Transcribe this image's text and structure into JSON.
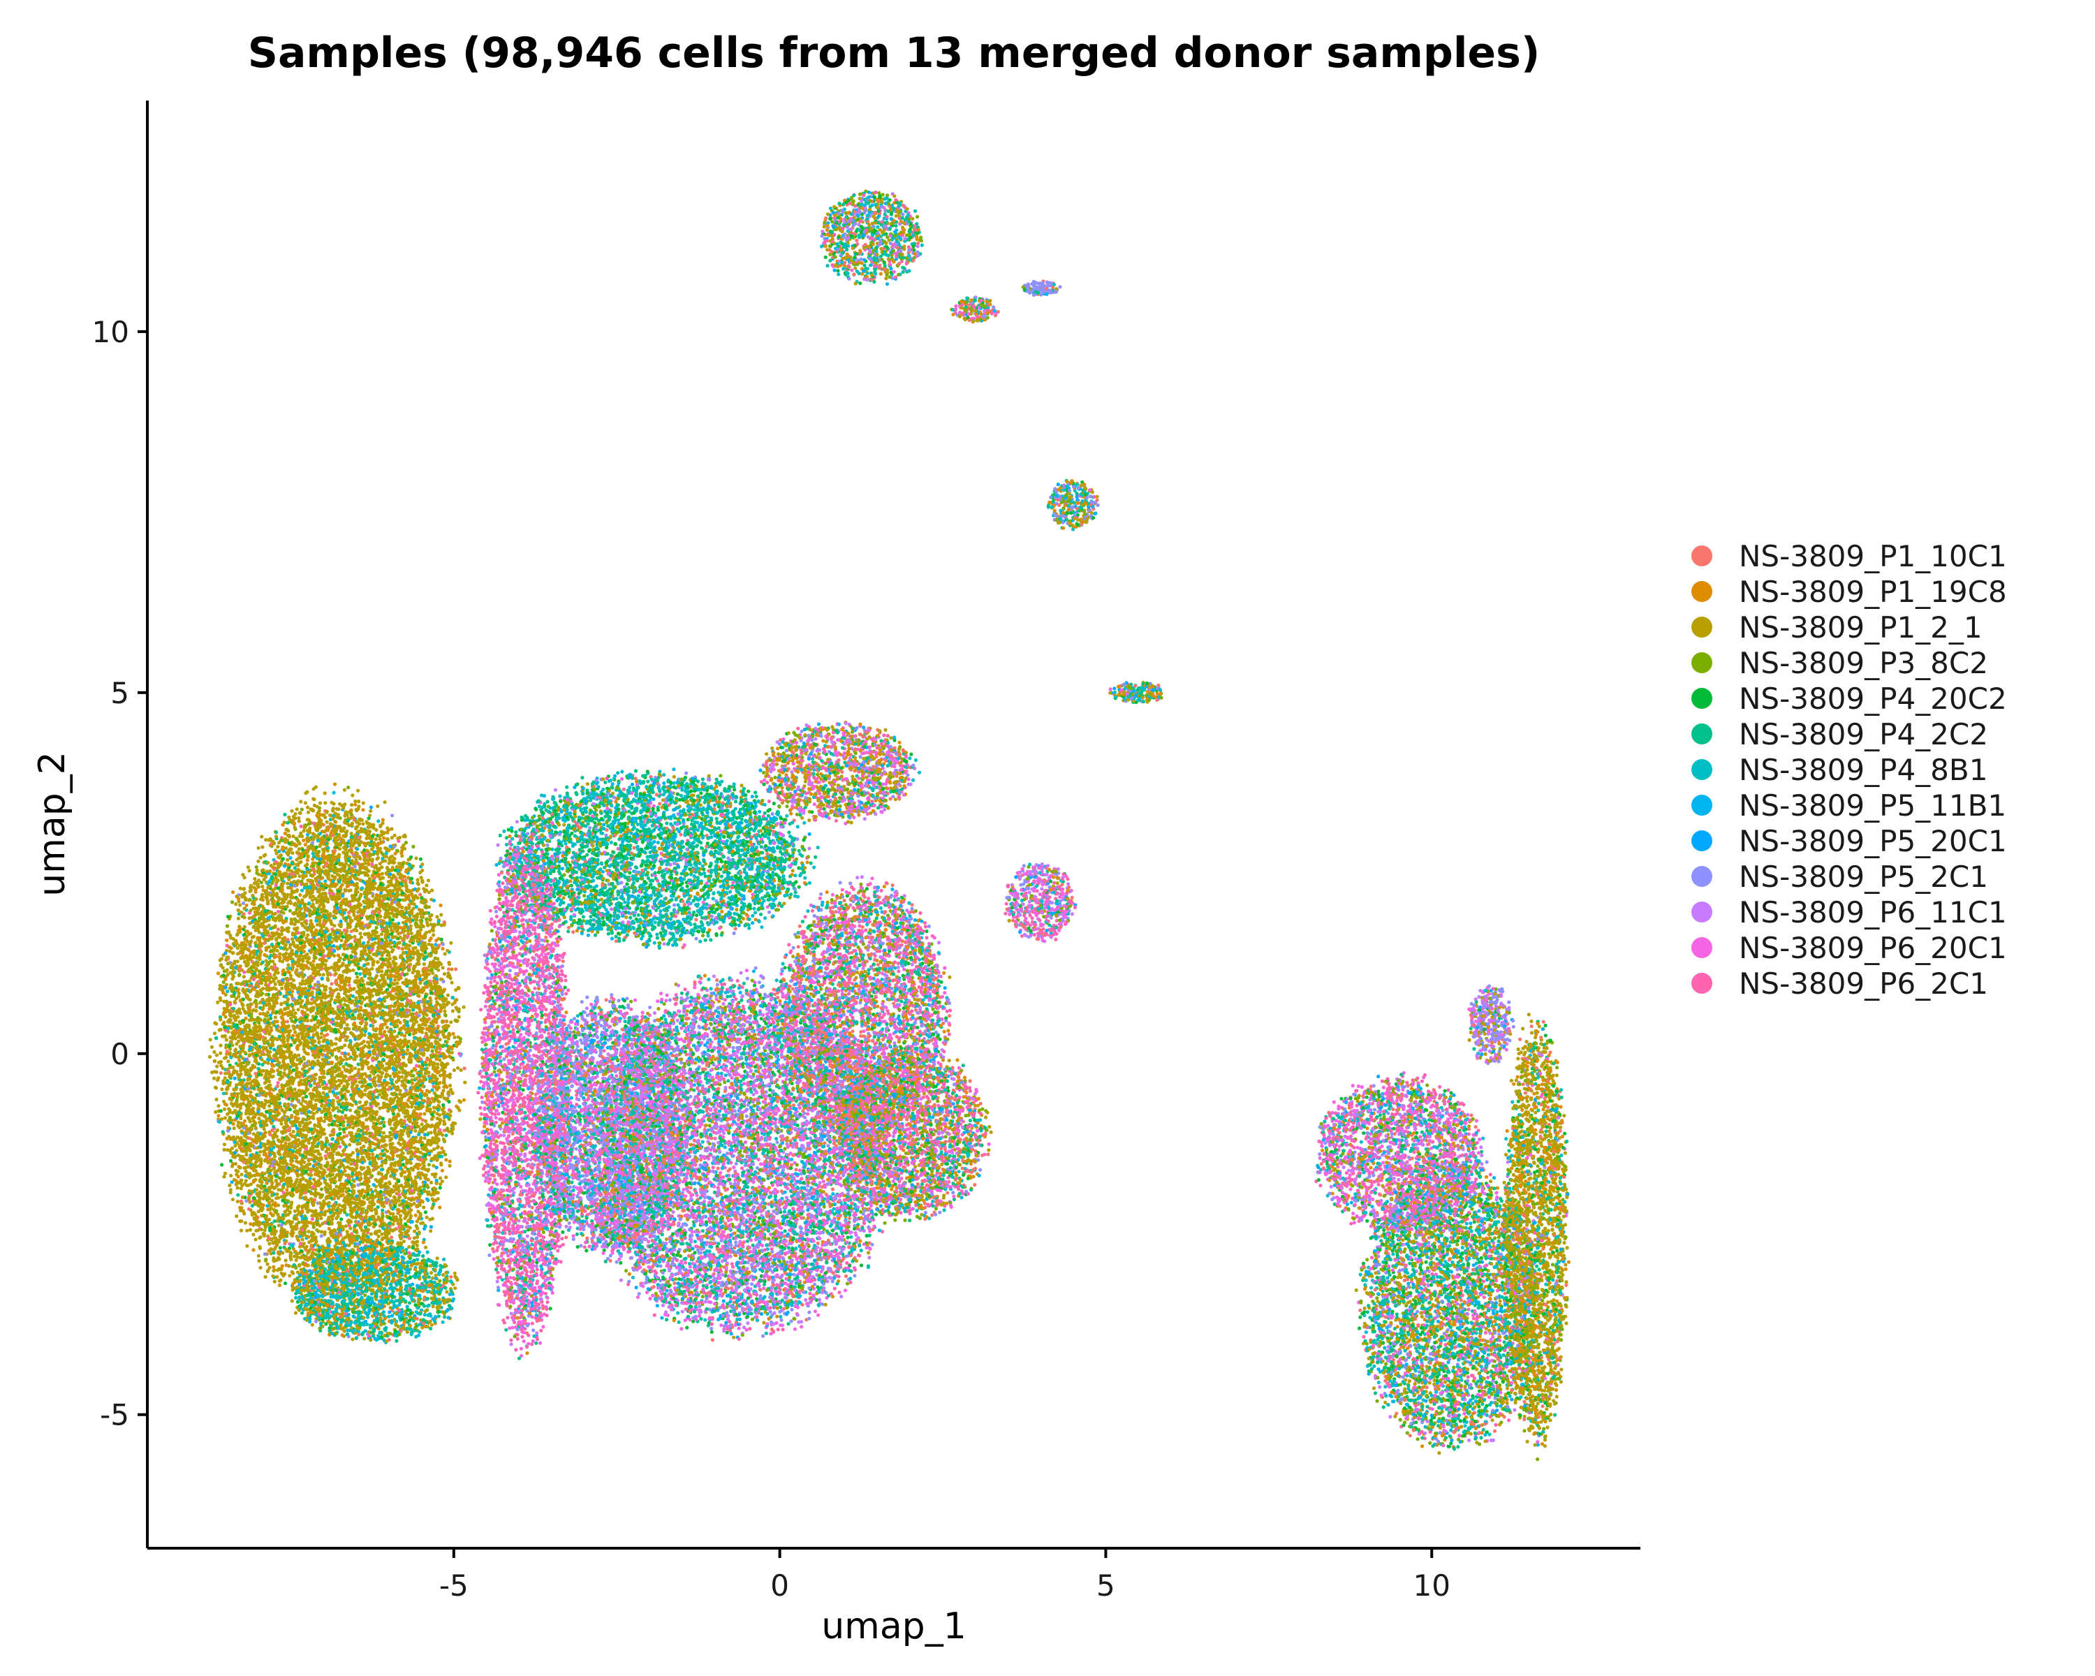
{
  "chart_data": {
    "type": "scatter",
    "title": "Samples (98,946 cells from 13 merged donor samples)",
    "xlabel": "umap_1",
    "ylabel": "umap_2",
    "xlim": [
      -9.7,
      13.2
    ],
    "ylim": [
      -6.85,
      13.2
    ],
    "x_ticks": [
      -5,
      0,
      5,
      10
    ],
    "x_tick_labels": [
      "-5",
      "0",
      "5",
      "10"
    ],
    "y_ticks": [
      -5,
      0,
      5,
      10
    ],
    "y_tick_labels": [
      "-5",
      "0",
      "5",
      "10"
    ],
    "grid": false,
    "legend_position": "right",
    "series": [
      {
        "name": "NS-3809_P1_10C1",
        "color": "#F8766D"
      },
      {
        "name": "NS-3809_P1_19C8",
        "color": "#DE8C00"
      },
      {
        "name": "NS-3809_P1_2_1",
        "color": "#B79F00"
      },
      {
        "name": "NS-3809_P3_8C2",
        "color": "#7CAE00"
      },
      {
        "name": "NS-3809_P4_20C2",
        "color": "#00BA38"
      },
      {
        "name": "NS-3809_P4_2C2",
        "color": "#00C08B"
      },
      {
        "name": "NS-3809_P4_8B1",
        "color": "#00BFC4"
      },
      {
        "name": "NS-3809_P5_11B1",
        "color": "#00B4F0"
      },
      {
        "name": "NS-3809_P5_20C1",
        "color": "#00A9FF"
      },
      {
        "name": "NS-3809_P5_2C1",
        "color": "#8F91FF"
      },
      {
        "name": "NS-3809_P6_11C1",
        "color": "#C77CFF"
      },
      {
        "name": "NS-3809_P6_20C1",
        "color": "#F564E3"
      },
      {
        "name": "NS-3809_P6_2C1",
        "color": "#FF64B0"
      }
    ],
    "clusters": [
      {
        "cx": -6.8,
        "cy": 0.0,
        "rx": 1.9,
        "ry": 3.6,
        "weights": [
          0.03,
          0.08,
          0.72,
          0.04,
          0.03,
          0.03,
          0.03,
          0.01,
          0.01,
          0.01,
          0.0,
          0.0,
          0.01
        ]
      },
      {
        "cx": -6.2,
        "cy": -3.3,
        "rx": 1.3,
        "ry": 0.7,
        "weights": [
          0.02,
          0.04,
          0.25,
          0.05,
          0.05,
          0.2,
          0.3,
          0.05,
          0.02,
          0.01,
          0.0,
          0.0,
          0.01
        ]
      },
      {
        "cx": -1.9,
        "cy": 2.7,
        "rx": 2.4,
        "ry": 1.2,
        "weights": [
          0.04,
          0.03,
          0.05,
          0.08,
          0.12,
          0.25,
          0.28,
          0.05,
          0.02,
          0.03,
          0.02,
          0.02,
          0.01
        ]
      },
      {
        "cx": 0.9,
        "cy": 3.9,
        "rx": 1.2,
        "ry": 0.7,
        "weights": [
          0.05,
          0.1,
          0.2,
          0.08,
          0.06,
          0.06,
          0.05,
          0.02,
          0.02,
          0.06,
          0.1,
          0.1,
          0.1
        ]
      },
      {
        "cx": -3.9,
        "cy": -0.5,
        "rx": 0.7,
        "ry": 3.6,
        "weights": [
          0.05,
          0.02,
          0.02,
          0.03,
          0.03,
          0.05,
          0.05,
          0.02,
          0.02,
          0.08,
          0.05,
          0.18,
          0.4
        ]
      },
      {
        "cx": -2.6,
        "cy": -1.0,
        "rx": 1.2,
        "ry": 1.8,
        "weights": [
          0.05,
          0.02,
          0.02,
          0.03,
          0.05,
          0.07,
          0.08,
          0.03,
          0.03,
          0.3,
          0.1,
          0.12,
          0.1
        ]
      },
      {
        "cx": -0.6,
        "cy": -1.4,
        "rx": 2.4,
        "ry": 2.5,
        "weights": [
          0.07,
          0.03,
          0.03,
          0.05,
          0.06,
          0.1,
          0.08,
          0.04,
          0.03,
          0.14,
          0.12,
          0.15,
          0.1
        ]
      },
      {
        "cx": 1.3,
        "cy": 0.6,
        "rx": 1.3,
        "ry": 1.8,
        "weights": [
          0.12,
          0.05,
          0.06,
          0.07,
          0.05,
          0.07,
          0.06,
          0.05,
          0.03,
          0.08,
          0.06,
          0.12,
          0.18
        ]
      },
      {
        "cx": 2.0,
        "cy": -1.1,
        "rx": 1.2,
        "ry": 1.2,
        "weights": [
          0.14,
          0.08,
          0.1,
          0.1,
          0.06,
          0.08,
          0.05,
          0.04,
          0.02,
          0.05,
          0.05,
          0.1,
          0.13
        ]
      },
      {
        "cx": 1.4,
        "cy": 11.3,
        "rx": 0.8,
        "ry": 0.65,
        "weights": [
          0.06,
          0.08,
          0.12,
          0.08,
          0.08,
          0.14,
          0.12,
          0.05,
          0.03,
          0.1,
          0.04,
          0.04,
          0.06
        ]
      },
      {
        "cx": 3.0,
        "cy": 10.3,
        "rx": 0.35,
        "ry": 0.18,
        "weights": [
          0.1,
          0.15,
          0.1,
          0.05,
          0.05,
          0.05,
          0.05,
          0.05,
          0.05,
          0.1,
          0.05,
          0.1,
          0.1
        ]
      },
      {
        "cx": 4.0,
        "cy": 10.6,
        "rx": 0.3,
        "ry": 0.1,
        "weights": [
          0.02,
          0.02,
          0.02,
          0.02,
          0.02,
          0.02,
          0.02,
          0.02,
          0.02,
          0.8,
          0.02,
          0.0,
          0.0
        ]
      },
      {
        "cx": 4.5,
        "cy": 7.6,
        "rx": 0.4,
        "ry": 0.35,
        "weights": [
          0.05,
          0.15,
          0.15,
          0.1,
          0.05,
          0.1,
          0.1,
          0.05,
          0.05,
          0.15,
          0.02,
          0.02,
          0.01
        ]
      },
      {
        "cx": 5.5,
        "cy": 5.0,
        "rx": 0.45,
        "ry": 0.15,
        "weights": [
          0.05,
          0.15,
          0.15,
          0.1,
          0.1,
          0.1,
          0.1,
          0.05,
          0.05,
          0.1,
          0.02,
          0.02,
          0.01
        ]
      },
      {
        "cx": 4.0,
        "cy": 2.1,
        "rx": 0.55,
        "ry": 0.55,
        "weights": [
          0.05,
          0.03,
          0.03,
          0.03,
          0.03,
          0.03,
          0.05,
          0.03,
          0.02,
          0.1,
          0.15,
          0.2,
          0.25
        ]
      },
      {
        "cx": 10.3,
        "cy": -3.5,
        "rx": 1.4,
        "ry": 2.0,
        "weights": [
          0.06,
          0.05,
          0.16,
          0.1,
          0.1,
          0.14,
          0.12,
          0.04,
          0.03,
          0.06,
          0.04,
          0.05,
          0.05
        ]
      },
      {
        "cx": 9.5,
        "cy": -1.4,
        "rx": 1.3,
        "ry": 1.1,
        "weights": [
          0.06,
          0.04,
          0.06,
          0.05,
          0.05,
          0.05,
          0.05,
          0.03,
          0.03,
          0.1,
          0.1,
          0.18,
          0.2
        ]
      },
      {
        "cx": 11.6,
        "cy": -2.5,
        "rx": 0.5,
        "ry": 3.0,
        "weights": [
          0.05,
          0.12,
          0.5,
          0.1,
          0.05,
          0.05,
          0.05,
          0.02,
          0.01,
          0.02,
          0.01,
          0.01,
          0.01
        ]
      },
      {
        "cx": 10.9,
        "cy": 0.4,
        "rx": 0.35,
        "ry": 0.55,
        "weights": [
          0.03,
          0.03,
          0.1,
          0.03,
          0.02,
          0.03,
          0.03,
          0.02,
          0.02,
          0.35,
          0.18,
          0.1,
          0.06
        ]
      }
    ]
  }
}
